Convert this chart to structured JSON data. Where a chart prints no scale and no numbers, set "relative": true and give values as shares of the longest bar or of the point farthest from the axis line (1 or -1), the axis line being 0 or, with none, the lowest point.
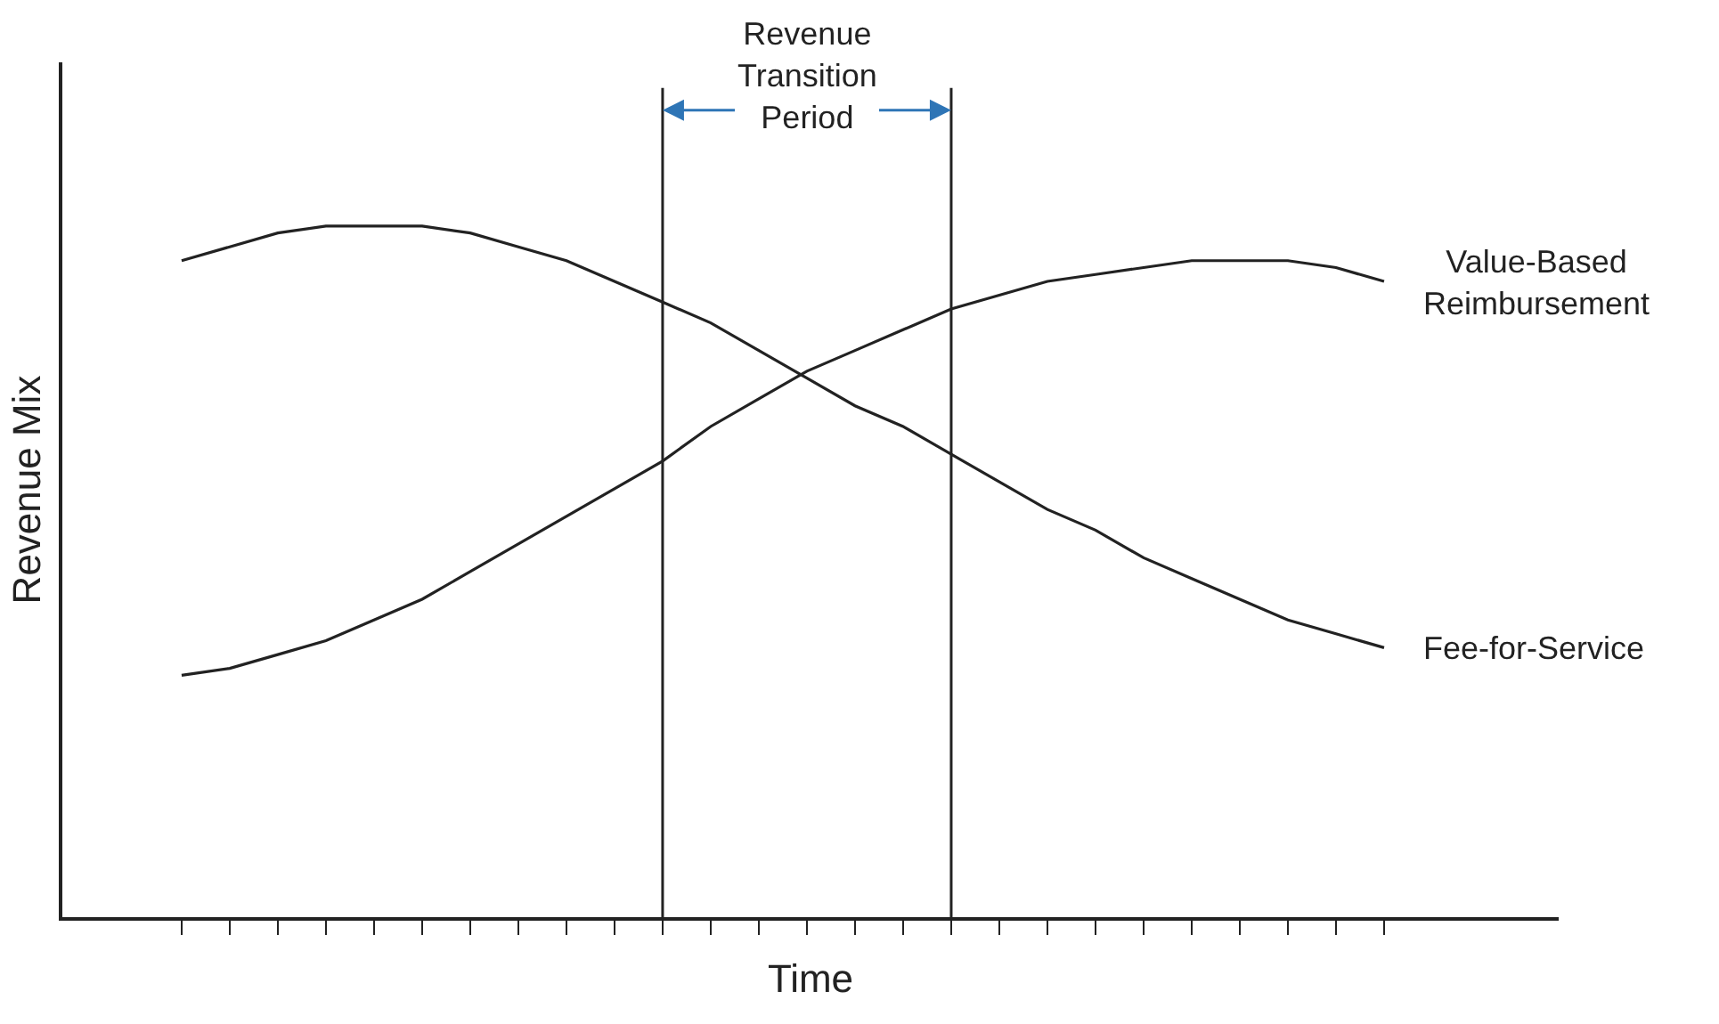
{
  "chart_data": {
    "type": "line",
    "relative": true,
    "xlabel": "Time",
    "ylabel": "Revenue Mix",
    "legend": false,
    "annotations": [
      "Revenue Transition Period"
    ],
    "categories": [
      null,
      null,
      null,
      null,
      null,
      null,
      null,
      null,
      null,
      null,
      null,
      null,
      null,
      null,
      null,
      null,
      null,
      null,
      null,
      null,
      null,
      null,
      null,
      null,
      null,
      null
    ],
    "series": [
      {
        "name": "Fee-for-Service",
        "color": "#222222",
        "values": [
          0.95,
          0.97,
          0.99,
          1.0,
          1.0,
          1.0,
          0.99,
          0.97,
          0.95,
          0.92,
          0.89,
          0.86,
          0.82,
          0.78,
          0.74,
          0.71,
          0.67,
          0.63,
          0.59,
          0.56,
          0.52,
          0.49,
          0.46,
          0.43,
          0.41,
          0.39
        ]
      },
      {
        "name": "Value-Based Reimbursement",
        "color": "#222222",
        "values": [
          0.35,
          0.36,
          0.38,
          0.4,
          0.43,
          0.46,
          0.5,
          0.54,
          0.58,
          0.62,
          0.66,
          0.71,
          0.75,
          0.79,
          0.82,
          0.85,
          0.88,
          0.9,
          0.92,
          0.93,
          0.94,
          0.95,
          0.95,
          0.95,
          0.94,
          0.92
        ]
      }
    ]
  }
}
